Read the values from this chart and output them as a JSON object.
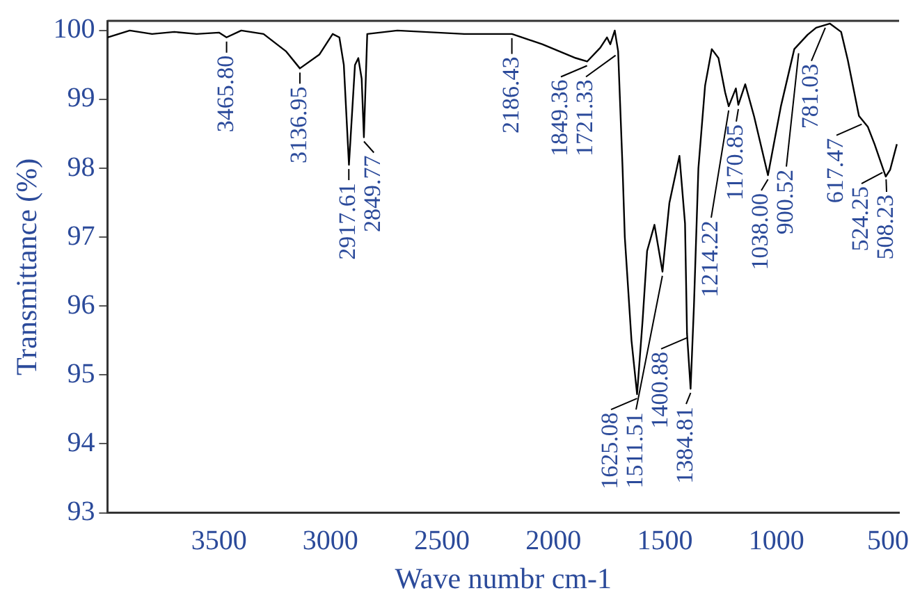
{
  "chart_data": {
    "type": "line",
    "xlabel": "Wave numbr cm-1",
    "ylabel": "Transmittance (%)",
    "xlim": [
      4000,
      450
    ],
    "xticks": [
      3500,
      3000,
      2500,
      2000,
      1500,
      1000,
      500
    ],
    "ylim": [
      93,
      100.14
    ],
    "yticks": [
      93,
      94,
      95,
      96,
      97,
      98,
      99,
      100
    ],
    "grid": false,
    "legend": false,
    "marker": "none",
    "line_style": "solid",
    "series": [
      {
        "color": "#000000",
        "x": [
          4000,
          3900,
          3800,
          3700,
          3600,
          3500,
          3466,
          3400,
          3300,
          3200,
          3137,
          3050,
          2990,
          2960,
          2940,
          2917,
          2890,
          2875,
          2860,
          2850,
          2835,
          2700,
          2400,
          2186,
          2050,
          1900,
          1849,
          1790,
          1760,
          1745,
          1725,
          1710,
          1690,
          1680,
          1650,
          1625,
          1600,
          1580,
          1547,
          1511,
          1480,
          1435,
          1410,
          1401,
          1385,
          1370,
          1350,
          1320,
          1290,
          1260,
          1230,
          1214,
          1182,
          1171,
          1140,
          1100,
          1038,
          980,
          920,
          860,
          822,
          760,
          710,
          680,
          630,
          590,
          560,
          510,
          490,
          460
        ],
        "values": [
          99.9,
          100.0,
          99.95,
          99.98,
          99.95,
          99.97,
          99.9,
          100.0,
          99.95,
          99.7,
          99.45,
          99.65,
          99.95,
          99.9,
          99.5,
          98.05,
          99.5,
          99.6,
          99.3,
          98.45,
          99.95,
          100.0,
          99.95,
          99.95,
          99.8,
          99.6,
          99.55,
          99.75,
          99.9,
          99.8,
          100.0,
          99.7,
          98.0,
          97.0,
          95.5,
          94.72,
          95.8,
          96.8,
          97.18,
          96.5,
          97.5,
          98.18,
          97.2,
          95.6,
          94.8,
          96.0,
          98.0,
          99.2,
          99.73,
          99.6,
          99.1,
          98.9,
          99.16,
          98.92,
          99.22,
          98.75,
          97.9,
          98.9,
          99.73,
          99.94,
          100.04,
          100.1,
          99.98,
          99.57,
          98.76,
          98.6,
          98.35,
          97.88,
          97.98,
          98.35
        ]
      }
    ],
    "annotations": [
      {
        "text": "3465.80",
        "x": 3465.8,
        "y": 99.9
      },
      {
        "text": "3136.95",
        "x": 3136.95,
        "y": 99.45
      },
      {
        "text": "2917.61",
        "x": 2917.61,
        "y": 98.05
      },
      {
        "text": "2849.77",
        "x": 2849.77,
        "y": 98.45
      },
      {
        "text": "2186.43",
        "x": 2186.43,
        "y": 99.95
      },
      {
        "text": "1849.36",
        "x": 1849.36,
        "y": 99.55
      },
      {
        "text": "1721.33",
        "x": 1721.33,
        "y": 99.7
      },
      {
        "text": "1625.08",
        "x": 1625.08,
        "y": 94.72
      },
      {
        "text": "1511.51",
        "x": 1511.51,
        "y": 96.5
      },
      {
        "text": "1400.88",
        "x": 1400.88,
        "y": 95.6
      },
      {
        "text": "1384.81",
        "x": 1384.81,
        "y": 94.8
      },
      {
        "text": "1214.22",
        "x": 1214.22,
        "y": 98.9
      },
      {
        "text": "1170.85",
        "x": 1170.85,
        "y": 98.92
      },
      {
        "text": "1038.00",
        "x": 1038.0,
        "y": 97.9
      },
      {
        "text": "900.52",
        "x": 900.52,
        "y": 99.73
      },
      {
        "text": "781.03",
        "x": 781.03,
        "y": 100.1
      },
      {
        "text": "617.47",
        "x": 617.47,
        "y": 98.7
      },
      {
        "text": "524.25",
        "x": 524.25,
        "y": 98.0
      },
      {
        "text": "508.23",
        "x": 508.23,
        "y": 97.9
      }
    ]
  }
}
